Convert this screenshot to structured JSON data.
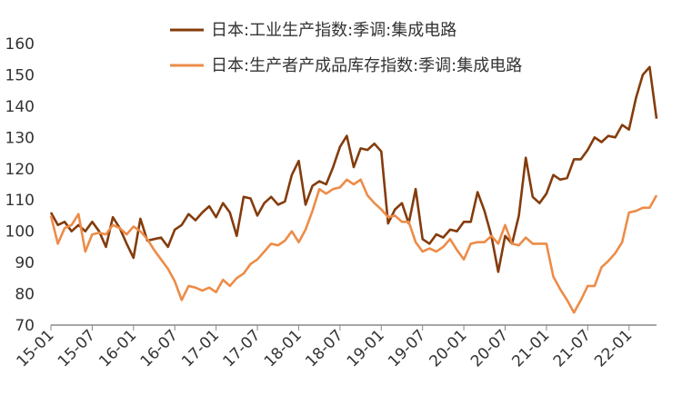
{
  "chart_data": {
    "type": "line",
    "title": "",
    "xlabel": "",
    "ylabel": "",
    "ylim": [
      70,
      160
    ],
    "y_ticks": [
      70,
      80,
      90,
      100,
      110,
      120,
      130,
      140,
      150,
      160
    ],
    "x_tick_labels": [
      "15-01",
      "15-07",
      "16-01",
      "16-07",
      "17-01",
      "17-07",
      "18-01",
      "18-07",
      "19-01",
      "19-07",
      "20-01",
      "20-07",
      "21-01",
      "21-07",
      "22-01"
    ],
    "x_start": "2015-01",
    "x_end": "2022-05",
    "grid": false,
    "legend_position": "top",
    "series": [
      {
        "name": "日本:工业生产指数:季调:集成电路",
        "color": "#843C0C",
        "values": [
          106,
          102,
          103,
          100,
          102,
          100,
          103,
          100,
          95,
          104.5,
          101,
          96,
          91.5,
          104,
          97,
          97.5,
          98,
          95,
          100.5,
          102,
          105.5,
          103.5,
          106,
          108,
          104.5,
          109,
          106,
          98.5,
          111,
          110.5,
          105,
          109,
          111,
          108.5,
          109.5,
          118,
          122.5,
          108.5,
          114.5,
          116,
          115,
          120.5,
          127,
          130.5,
          120.5,
          126.5,
          126,
          128,
          125.5,
          102.5,
          107,
          109,
          102.5,
          113.5,
          97.5,
          96,
          99,
          98,
          100.5,
          100,
          103,
          103,
          112.5,
          106.5,
          98.5,
          87,
          98.5,
          96,
          105,
          123.5,
          111,
          109,
          112,
          118,
          116.5,
          117,
          123,
          123,
          126,
          130,
          128.5,
          130.5,
          130,
          134,
          132.5,
          142.5,
          150,
          152.5,
          136
        ]
      },
      {
        "name": "日本:生产者产成品库存指数:季调:集成电路",
        "color": "#ED8C48",
        "values": [
          105,
          96,
          101,
          102,
          105.5,
          93.5,
          99,
          99.5,
          99,
          102,
          101,
          99,
          101.5,
          100,
          97.5,
          94,
          91,
          88,
          84,
          78,
          82.5,
          82,
          81,
          82,
          80.5,
          84.5,
          82.5,
          85,
          86.5,
          89.5,
          91,
          93.5,
          96,
          95.5,
          97,
          100,
          96.5,
          100.5,
          106.5,
          113.5,
          112,
          113.5,
          114,
          116.5,
          115,
          116.5,
          111.5,
          109,
          107,
          104.5,
          105,
          103,
          103,
          96.5,
          93.5,
          94.5,
          93.5,
          95,
          97.5,
          94,
          91,
          96,
          96.5,
          96.5,
          98.5,
          96,
          102,
          96,
          95.5,
          98,
          96,
          96,
          96,
          85.5,
          81.5,
          78,
          74,
          78,
          82.5,
          82.5,
          88.5,
          90.5,
          93,
          96.5,
          106,
          106.5,
          107.5,
          107.5,
          111.5
        ]
      }
    ]
  }
}
